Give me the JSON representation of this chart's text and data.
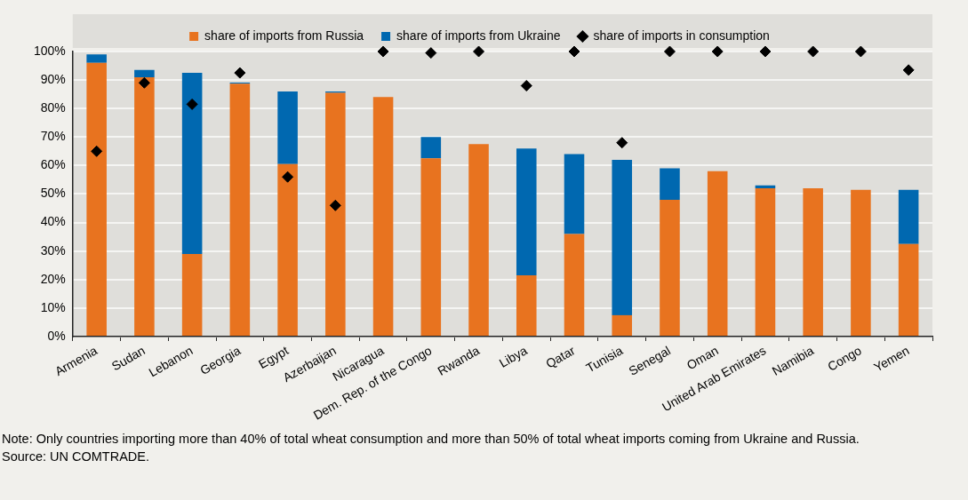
{
  "chart_data": {
    "type": "bar",
    "stacked": true,
    "legend": "top",
    "grid": "y",
    "marker": "diamond",
    "categories": [
      "Armenia",
      "Sudan",
      "Lebanon",
      "Georgia",
      "Egypt",
      "Azerbaijan",
      "Nicaragua",
      "Dem. Rep. of the Congo",
      "Rwanda",
      "Libya",
      "Qatar",
      "Tunisia",
      "Senegal",
      "Oman",
      "United Arab Emirates",
      "Namibia",
      "Congo",
      "Yemen"
    ],
    "series": [
      {
        "name": "share of imports from Russia",
        "color": "#e8731f",
        "values": [
          96,
          91,
          29,
          88.7,
          60.5,
          85.5,
          84,
          62.5,
          67.5,
          21.5,
          36,
          7.5,
          48,
          58,
          52,
          52,
          51.5,
          32.5
        ]
      },
      {
        "name": "share of imports from Ukraine",
        "color": "#0068b0",
        "values": [
          3,
          2.5,
          63.5,
          0.4,
          25.5,
          0.5,
          0,
          7.5,
          0,
          44.5,
          28,
          54.5,
          11,
          0,
          1,
          0,
          0,
          19
        ]
      },
      {
        "name": "share of imports in consumption",
        "type": "scatter",
        "color": "#000000",
        "x": [
          "Armenia",
          "Sudan",
          "Lebanon",
          "Georgia",
          "Egypt",
          "Azerbaijan",
          "Nicaragua",
          "Dem. Rep. of the Congo",
          "Rwanda",
          "Libya",
          "Qatar",
          "Tunisia",
          "Senegal",
          "Oman",
          "United Arab Emirates",
          "Namibia",
          "Congo",
          "Yemen"
        ],
        "values": [
          65,
          89,
          81.5,
          92.5,
          56,
          46,
          100,
          99.5,
          100,
          88,
          100,
          68,
          100,
          100,
          100,
          100,
          100,
          93.5
        ]
      }
    ],
    "ylim": [
      0,
      100
    ],
    "yticks": [
      {
        "value": 0,
        "label": "0%"
      },
      {
        "value": 10,
        "label": "10%"
      },
      {
        "value": 20,
        "label": "20%"
      },
      {
        "value": 30,
        "label": "30%"
      },
      {
        "value": 40,
        "label": "40%"
      },
      {
        "value": 50,
        "label": "50%"
      },
      {
        "value": 60,
        "label": "60%"
      },
      {
        "value": 70,
        "label": "70%"
      },
      {
        "value": 80,
        "label": "80%"
      },
      {
        "value": 90,
        "label": "90%"
      },
      {
        "value": 100,
        "label": "100%"
      }
    ],
    "annotations": [
      "Note: Only countries importing more than 40% of total wheat consumption and more than 50% of total wheat imports coming from Ukraine and Russia.",
      "Source: UN COMTRADE."
    ]
  }
}
